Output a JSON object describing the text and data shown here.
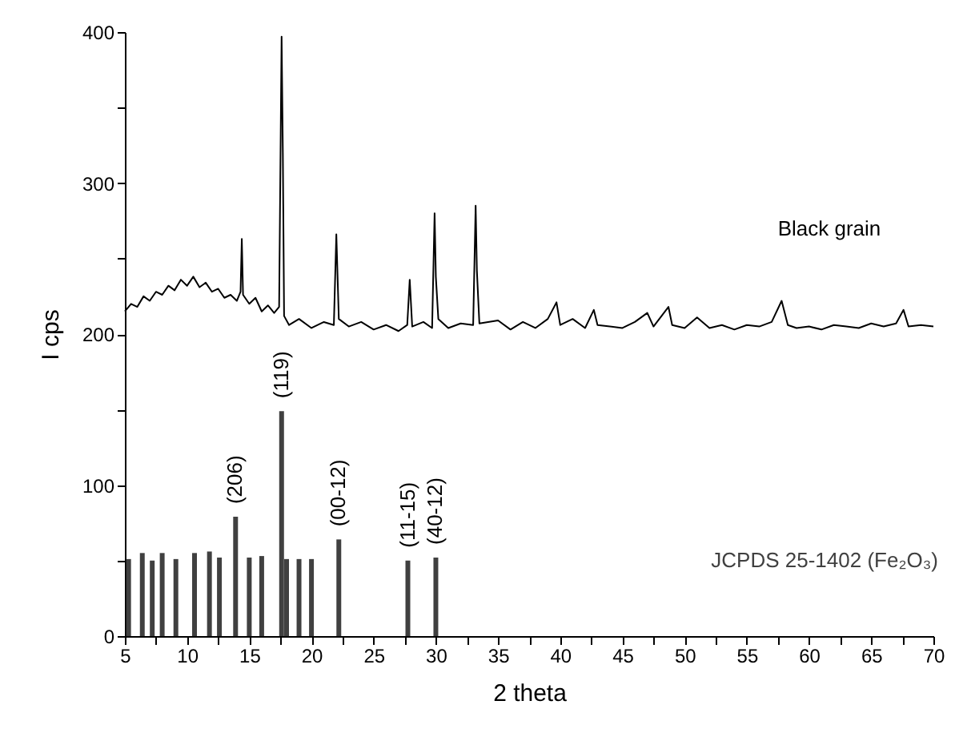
{
  "chart_data": {
    "type": "line",
    "xlabel": "2 theta",
    "ylabel": "I cps",
    "xlim": [
      5,
      70
    ],
    "ylim": [
      0,
      400
    ],
    "xticks": [
      5,
      {
        "value": 7.5,
        "label": null
      },
      10,
      {
        "value": 12.5,
        "label": null
      },
      15,
      {
        "value": 17.5,
        "label": null
      },
      20,
      {
        "value": 22.5,
        "label": null
      },
      25,
      {
        "value": 27.5,
        "label": null
      },
      30,
      {
        "value": 32.5,
        "label": null
      },
      35,
      {
        "value": 37.5,
        "label": null
      },
      40,
      {
        "value": 42.5,
        "label": null
      },
      45,
      {
        "value": 47.5,
        "label": null
      },
      50,
      {
        "value": 52.5,
        "label": null
      },
      55,
      {
        "value": 57.5,
        "label": null
      },
      60,
      {
        "value": 62.5,
        "label": null
      },
      65,
      {
        "value": 67.5,
        "label": null
      },
      70
    ],
    "yticks": [
      0,
      {
        "value": 50,
        "label": null
      },
      100,
      {
        "value": 150,
        "label": null
      },
      200,
      {
        "value": 250,
        "label": null
      },
      300,
      {
        "value": 350,
        "label": null
      },
      400
    ],
    "grid": false,
    "series": [
      {
        "name": "Black grain",
        "color": "#000000",
        "x": [
          5,
          5.5,
          6,
          6.5,
          7,
          7.5,
          8,
          8.5,
          9,
          9.5,
          10,
          10.5,
          11,
          11.5,
          12,
          12.5,
          13,
          13.5,
          14,
          14.3,
          14.4,
          14.5,
          15,
          15.5,
          16,
          16.5,
          17,
          17.4,
          17.6,
          17.7,
          17.8,
          18.2,
          19,
          20,
          21,
          21.8,
          22.0,
          22.2,
          23,
          24,
          25,
          26,
          27,
          27.7,
          27.9,
          28.1,
          29,
          29.7,
          29.9,
          30.0,
          30.2,
          31,
          32,
          33.0,
          33.2,
          33.3,
          33.5,
          35,
          36,
          37,
          38,
          39,
          39.7,
          40,
          41,
          42,
          42.7,
          43,
          45,
          46,
          47,
          47.5,
          48.7,
          49,
          50,
          51,
          52,
          53,
          54,
          55,
          56,
          57,
          57.8,
          58.3,
          59,
          60,
          61,
          62,
          63,
          64,
          65,
          66,
          67,
          67.6,
          68,
          69,
          70
        ],
        "values": [
          215,
          220,
          218,
          225,
          222,
          228,
          226,
          232,
          229,
          236,
          232,
          238,
          231,
          234,
          228,
          230,
          224,
          226,
          222,
          228,
          263,
          226,
          220,
          224,
          215,
          219,
          214,
          218,
          397,
          320,
          212,
          206,
          210,
          204,
          208,
          206,
          266,
          210,
          205,
          208,
          203,
          206,
          202,
          206,
          236,
          205,
          208,
          204,
          280,
          238,
          210,
          204,
          207,
          206,
          285,
          242,
          207,
          209,
          203,
          208,
          204,
          210,
          221,
          206,
          210,
          204,
          216,
          206,
          204,
          208,
          214,
          205,
          218,
          206,
          204,
          211,
          204,
          206,
          203,
          206,
          205,
          208,
          222,
          206,
          204,
          205,
          203,
          206,
          205,
          204,
          207,
          205,
          207,
          216,
          205,
          206,
          205
        ]
      },
      {
        "name": "JCPDS 25-1402 (Fe₂O₃)",
        "type": "bar",
        "color": "#404040",
        "x": [
          5.3,
          6.4,
          7.2,
          8.0,
          9.1,
          10.6,
          11.8,
          12.6,
          13.9,
          15.0,
          16.0,
          17.6,
          18.0,
          19.0,
          20.0,
          22.2,
          27.75,
          30.0
        ],
        "values": [
          51,
          55,
          50,
          55,
          51,
          55,
          56,
          52,
          79,
          52,
          53,
          149,
          51,
          51,
          51,
          64,
          50,
          52
        ]
      }
    ],
    "annotations": [
      {
        "text": "(206)",
        "x": 13.9,
        "y": 79
      },
      {
        "text": "(119)",
        "x": 17.6,
        "y": 149
      },
      {
        "text": "(00-12)",
        "x": 22.2,
        "y": 64
      },
      {
        "text": "(11-15)",
        "x": 27.75,
        "y": 50
      },
      {
        "text": "(40-12)",
        "x": 30.0,
        "y": 52
      }
    ]
  }
}
